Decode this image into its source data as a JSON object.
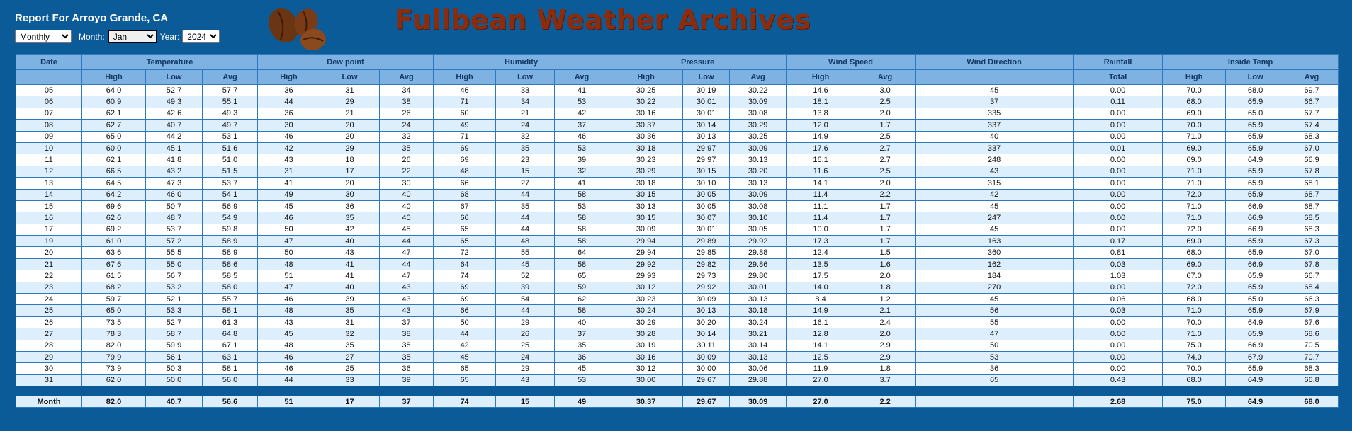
{
  "header": {
    "title": "Report For Arroyo Grande, CA",
    "brand": "Fullbean Weather Archives",
    "controls": {
      "period": "Monthly",
      "month_label": "Month:",
      "month": "Jan",
      "year_label": "Year:",
      "year": "2024"
    }
  },
  "table": {
    "date_label": "Date",
    "groups": [
      {
        "label": "Temperature",
        "columns": [
          "High",
          "Low",
          "Avg"
        ]
      },
      {
        "label": "Dew point",
        "columns": [
          "High",
          "Low",
          "Avg"
        ]
      },
      {
        "label": "Humidity",
        "columns": [
          "High",
          "Low",
          "Avg"
        ]
      },
      {
        "label": "Pressure",
        "columns": [
          "High",
          "Low",
          "Avg"
        ]
      },
      {
        "label": "Wind Speed",
        "columns": [
          "High",
          "Avg"
        ]
      },
      {
        "label": "Wind Direction",
        "columns": []
      },
      {
        "label": "Rainfall",
        "columns": [
          "Total"
        ]
      },
      {
        "label": "Inside Temp",
        "columns": [
          "High",
          "Low",
          "Avg"
        ]
      }
    ],
    "rows": [
      [
        "05",
        "64.0",
        "52.7",
        "57.7",
        "36",
        "31",
        "34",
        "46",
        "33",
        "41",
        "30.25",
        "30.19",
        "30.22",
        "14.6",
        "3.0",
        "45",
        "0.00",
        "70.0",
        "68.0",
        "69.7"
      ],
      [
        "06",
        "60.9",
        "49.3",
        "55.1",
        "44",
        "29",
        "38",
        "71",
        "34",
        "53",
        "30.22",
        "30.01",
        "30.09",
        "18.1",
        "2.5",
        "37",
        "0.11",
        "68.0",
        "65.9",
        "66.7"
      ],
      [
        "07",
        "62.1",
        "42.6",
        "49.3",
        "36",
        "21",
        "26",
        "60",
        "21",
        "42",
        "30.16",
        "30.01",
        "30.08",
        "13.8",
        "2.0",
        "335",
        "0.00",
        "69.0",
        "65.0",
        "67.7"
      ],
      [
        "08",
        "62.7",
        "40.7",
        "49.7",
        "30",
        "20",
        "24",
        "49",
        "24",
        "37",
        "30.37",
        "30.14",
        "30.29",
        "12.0",
        "1.7",
        "337",
        "0.00",
        "70.0",
        "65.9",
        "67.4"
      ],
      [
        "09",
        "65.0",
        "44.2",
        "53.1",
        "46",
        "20",
        "32",
        "71",
        "32",
        "46",
        "30.36",
        "30.13",
        "30.25",
        "14.9",
        "2.5",
        "40",
        "0.00",
        "71.0",
        "65.9",
        "68.3"
      ],
      [
        "10",
        "60.0",
        "45.1",
        "51.6",
        "42",
        "29",
        "35",
        "69",
        "35",
        "53",
        "30.18",
        "29.97",
        "30.09",
        "17.6",
        "2.7",
        "337",
        "0.01",
        "69.0",
        "65.9",
        "67.0"
      ],
      [
        "11",
        "62.1",
        "41.8",
        "51.0",
        "43",
        "18",
        "26",
        "69",
        "23",
        "39",
        "30.23",
        "29.97",
        "30.13",
        "16.1",
        "2.7",
        "248",
        "0.00",
        "69.0",
        "64.9",
        "66.9"
      ],
      [
        "12",
        "66.5",
        "43.2",
        "51.5",
        "31",
        "17",
        "22",
        "48",
        "15",
        "32",
        "30.29",
        "30.15",
        "30.20",
        "11.6",
        "2.5",
        "43",
        "0.00",
        "71.0",
        "65.9",
        "67.8"
      ],
      [
        "13",
        "64.5",
        "47.3",
        "53.7",
        "41",
        "20",
        "30",
        "66",
        "27",
        "41",
        "30.18",
        "30.10",
        "30.13",
        "14.1",
        "2.0",
        "315",
        "0.00",
        "71.0",
        "65.9",
        "68.1"
      ],
      [
        "14",
        "64.2",
        "46.0",
        "54.1",
        "49",
        "30",
        "40",
        "68",
        "44",
        "58",
        "30.15",
        "30.05",
        "30.09",
        "11.4",
        "2.2",
        "42",
        "0.00",
        "72.0",
        "65.9",
        "68.7"
      ],
      [
        "15",
        "69.6",
        "50.7",
        "56.9",
        "45",
        "36",
        "40",
        "67",
        "35",
        "53",
        "30.13",
        "30.05",
        "30.08",
        "11.1",
        "1.7",
        "45",
        "0.00",
        "71.0",
        "66.9",
        "68.7"
      ],
      [
        "16",
        "62.6",
        "48.7",
        "54.9",
        "46",
        "35",
        "40",
        "66",
        "44",
        "58",
        "30.15",
        "30.07",
        "30.10",
        "11.4",
        "1.7",
        "247",
        "0.00",
        "71.0",
        "66.9",
        "68.5"
      ],
      [
        "17",
        "69.2",
        "53.7",
        "59.8",
        "50",
        "42",
        "45",
        "65",
        "44",
        "58",
        "30.09",
        "30.01",
        "30.05",
        "10.0",
        "1.7",
        "45",
        "0.00",
        "72.0",
        "66.9",
        "68.3"
      ],
      [
        "19",
        "61.0",
        "57.2",
        "58.9",
        "47",
        "40",
        "44",
        "65",
        "48",
        "58",
        "29.94",
        "29.89",
        "29.92",
        "17.3",
        "1.7",
        "163",
        "0.17",
        "69.0",
        "65.9",
        "67.3"
      ],
      [
        "20",
        "63.6",
        "55.5",
        "58.9",
        "50",
        "43",
        "47",
        "72",
        "55",
        "64",
        "29.94",
        "29.85",
        "29.88",
        "12.4",
        "1.5",
        "360",
        "0.81",
        "68.0",
        "65.9",
        "67.0"
      ],
      [
        "21",
        "67.6",
        "55.0",
        "58.6",
        "48",
        "41",
        "44",
        "64",
        "45",
        "58",
        "29.92",
        "29.82",
        "29.86",
        "13.5",
        "1.6",
        "162",
        "0.03",
        "69.0",
        "66.9",
        "67.8"
      ],
      [
        "22",
        "61.5",
        "56.7",
        "58.5",
        "51",
        "41",
        "47",
        "74",
        "52",
        "65",
        "29.93",
        "29.73",
        "29.80",
        "17.5",
        "2.0",
        "184",
        "1.03",
        "67.0",
        "65.9",
        "66.7"
      ],
      [
        "23",
        "68.2",
        "53.2",
        "58.0",
        "47",
        "40",
        "43",
        "69",
        "39",
        "59",
        "30.12",
        "29.92",
        "30.01",
        "14.0",
        "1.8",
        "270",
        "0.00",
        "72.0",
        "65.9",
        "68.4"
      ],
      [
        "24",
        "59.7",
        "52.1",
        "55.7",
        "46",
        "39",
        "43",
        "69",
        "54",
        "62",
        "30.23",
        "30.09",
        "30.13",
        "8.4",
        "1.2",
        "45",
        "0.06",
        "68.0",
        "65.0",
        "66.3"
      ],
      [
        "25",
        "65.0",
        "53.3",
        "58.1",
        "48",
        "35",
        "43",
        "66",
        "44",
        "58",
        "30.24",
        "30.13",
        "30.18",
        "14.9",
        "2.1",
        "56",
        "0.03",
        "71.0",
        "65.9",
        "67.9"
      ],
      [
        "26",
        "73.5",
        "52.7",
        "61.3",
        "43",
        "31",
        "37",
        "50",
        "29",
        "40",
        "30.29",
        "30.20",
        "30.24",
        "16.1",
        "2.4",
        "55",
        "0.00",
        "70.0",
        "64.9",
        "67.6"
      ],
      [
        "27",
        "78.3",
        "58.7",
        "64.8",
        "45",
        "32",
        "38",
        "44",
        "26",
        "37",
        "30.28",
        "30.14",
        "30.21",
        "12.8",
        "2.0",
        "47",
        "0.00",
        "71.0",
        "65.9",
        "68.6"
      ],
      [
        "28",
        "82.0",
        "59.9",
        "67.1",
        "48",
        "35",
        "38",
        "42",
        "25",
        "35",
        "30.19",
        "30.11",
        "30.14",
        "14.1",
        "2.9",
        "50",
        "0.00",
        "75.0",
        "66.9",
        "70.5"
      ],
      [
        "29",
        "79.9",
        "56.1",
        "63.1",
        "46",
        "27",
        "35",
        "45",
        "24",
        "36",
        "30.16",
        "30.09",
        "30.13",
        "12.5",
        "2.9",
        "53",
        "0.00",
        "74.0",
        "67.9",
        "70.7"
      ],
      [
        "30",
        "73.9",
        "50.3",
        "58.1",
        "46",
        "25",
        "36",
        "65",
        "29",
        "45",
        "30.12",
        "30.00",
        "30.06",
        "11.9",
        "1.8",
        "36",
        "0.00",
        "70.0",
        "65.9",
        "68.3"
      ],
      [
        "31",
        "62.0",
        "50.0",
        "56.0",
        "44",
        "33",
        "39",
        "65",
        "43",
        "53",
        "30.00",
        "29.67",
        "29.88",
        "27.0",
        "3.7",
        "65",
        "0.43",
        "68.0",
        "64.9",
        "66.8"
      ]
    ],
    "footer": [
      "Month",
      "82.0",
      "40.7",
      "56.6",
      "51",
      "17",
      "37",
      "74",
      "15",
      "49",
      "30.37",
      "29.67",
      "30.09",
      "27.0",
      "2.2",
      null,
      "2.68",
      "75.0",
      "64.9",
      "68.0"
    ]
  }
}
